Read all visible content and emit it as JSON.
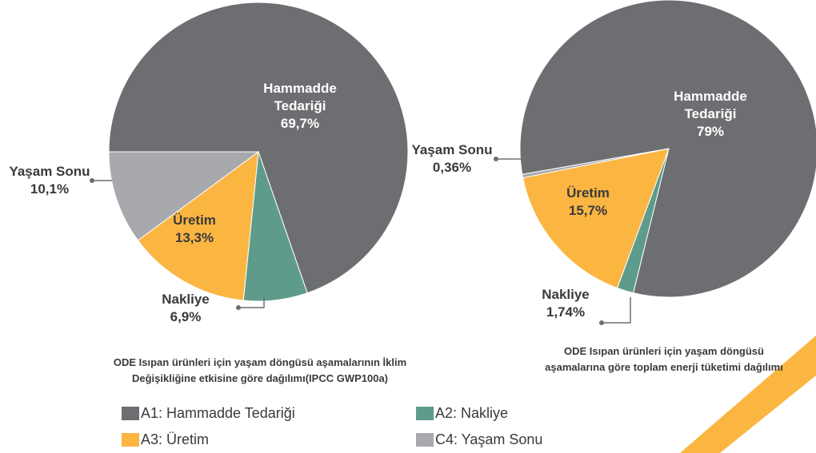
{
  "chart_data": [
    {
      "type": "pie",
      "categories": [
        "Hammadde Tedariği",
        "Nakliye",
        "Üretim",
        "Yaşam Sonu"
      ],
      "values": [
        69.7,
        6.9,
        13.3,
        10.1
      ],
      "value_labels": [
        "69,7%",
        "6,9%",
        "13,3%",
        "10,1%"
      ],
      "colors": [
        "#6d6e71",
        "#5f9b8b",
        "#fbb541",
        "#a8a9ad"
      ],
      "caption": "ODE Isıpan ürünleri için yaşam döngüsü aşamalarının İklim Değişikliğine etkisine göre dağılımı(IPCC GWP100a)"
    },
    {
      "type": "pie",
      "categories": [
        "Hammadde Tedariği",
        "Nakliye",
        "Üretim",
        "Yaşam Sonu"
      ],
      "values": [
        79,
        1.74,
        15.7,
        0.36
      ],
      "value_labels": [
        "79%",
        "1,74%",
        "15,7%",
        "0,36%"
      ],
      "colors": [
        "#6d6e71",
        "#5f9b8b",
        "#fbb541",
        "#a8a9ad"
      ],
      "caption": "ODE Isıpan ürünleri için yaşam döngüsü aşamalarına göre toplam enerji tüketimi dağılımı"
    }
  ],
  "legend": [
    {
      "label": "A1: Hammadde Tedariği",
      "color": "#6d6e71"
    },
    {
      "label": "A2: Nakliye",
      "color": "#5f9b8b"
    },
    {
      "label": "A3: Üretim",
      "color": "#fbb541"
    },
    {
      "label": "C4: Yaşam Sonu",
      "color": "#a8a9ad"
    }
  ]
}
